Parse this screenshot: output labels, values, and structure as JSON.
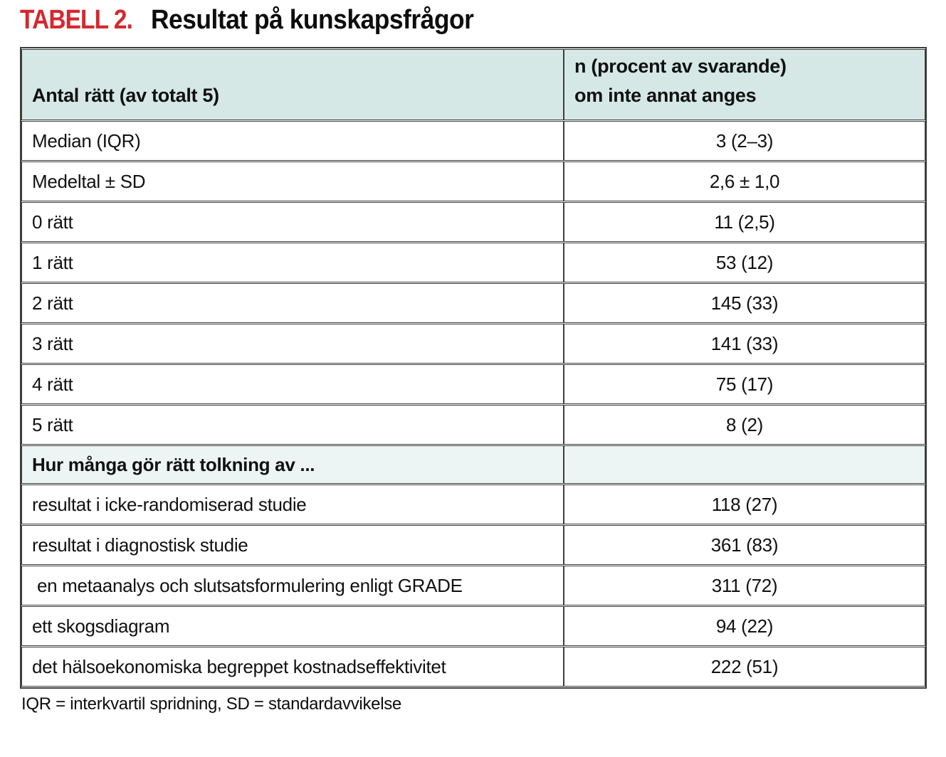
{
  "title": {
    "tag": "TABELL 2.",
    "text": "Resultat på kunskapsfrågor"
  },
  "table": {
    "header": {
      "col1": "Antal rätt (av totalt 5)",
      "col2": "n (procent av svarande)\nom inte annat anges"
    },
    "rows": [
      {
        "label": "Median (IQR)",
        "value": "3 (2–3)"
      },
      {
        "label": "Medeltal ± SD",
        "value": "2,6 ± 1,0"
      },
      {
        "label": "0 rätt",
        "value": "11 (2,5)"
      },
      {
        "label": "1 rätt",
        "value": "53 (12)"
      },
      {
        "label": "2 rätt",
        "value": "145 (33)"
      },
      {
        "label": "3 rätt",
        "value": "141 (33)"
      },
      {
        "label": "4 rätt",
        "value": "75 (17)"
      },
      {
        "label": "5 rätt",
        "value": "8 (2)"
      },
      {
        "label": "Hur många gör rätt tolkning av ...",
        "value": "",
        "section": true
      },
      {
        "label": "resultat i icke-randomiserad studie",
        "value": "118 (27)"
      },
      {
        "label": "resultat i diagnostisk studie",
        "value": "361 (83)"
      },
      {
        "label": " en metaanalys och slutsatsformulering enligt GRADE",
        "value": "311 (72)"
      },
      {
        "label": "ett skogsdiagram",
        "value": "94 (22)"
      },
      {
        "label": "det hälsoekonomiska begreppet kostnadseffektivitet",
        "value": "222 (51)"
      }
    ],
    "footnote": "IQR = interkvartil spridning, SD = standardavvikelse"
  },
  "colors": {
    "accent_red": "#d7272e",
    "header_teal": "#d5e8e5",
    "section_teal": "#edf4f4",
    "border": "#3d3d3d",
    "text": "#111111"
  }
}
